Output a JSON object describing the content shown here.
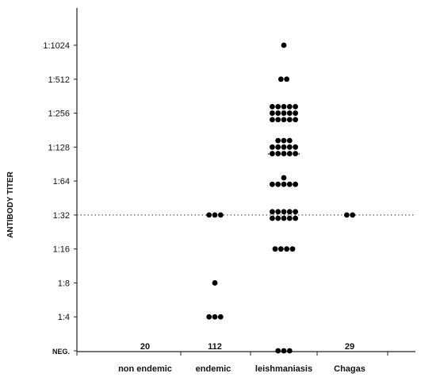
{
  "chart_data": {
    "type": "scatter",
    "title": "",
    "xlabel": "",
    "ylabel": "ANTIBODY TITER",
    "categories": [
      "non endemic",
      "endemic",
      "leishmaniasis",
      "Chagas"
    ],
    "y_ticks": [
      "NEG.",
      "1:4",
      "1:8",
      "1:16",
      "1:32",
      "1:64",
      "1:128",
      "1:256",
      "1:512",
      "1:1024"
    ],
    "negative_counts": [
      "20",
      "112",
      "",
      "29"
    ],
    "cutoff_titer": "1:32",
    "cutoff_style": "dotted",
    "grid": false,
    "points": [
      {
        "category": "endemic",
        "titer": "1:4",
        "count": 3
      },
      {
        "category": "endemic",
        "titer": "1:8",
        "count": 1
      },
      {
        "category": "endemic",
        "titer": "1:32",
        "count": 3
      },
      {
        "category": "leishmaniasis",
        "titer": "NEG.",
        "count": 3
      },
      {
        "category": "leishmaniasis",
        "titer": "1:16",
        "count": 4
      },
      {
        "category": "leishmaniasis",
        "titer": "1:32",
        "count": 10
      },
      {
        "category": "leishmaniasis",
        "titer": "1:64",
        "count": 6
      },
      {
        "category": "leishmaniasis",
        "titer": "1:128",
        "count": 13
      },
      {
        "category": "leishmaniasis",
        "titer": "1:256",
        "count": 15
      },
      {
        "category": "leishmaniasis",
        "titer": "1:512",
        "count": 2
      },
      {
        "category": "leishmaniasis",
        "titer": "1:1024",
        "count": 1
      },
      {
        "category": "Chagas",
        "titer": "1:32",
        "count": 2
      }
    ]
  }
}
